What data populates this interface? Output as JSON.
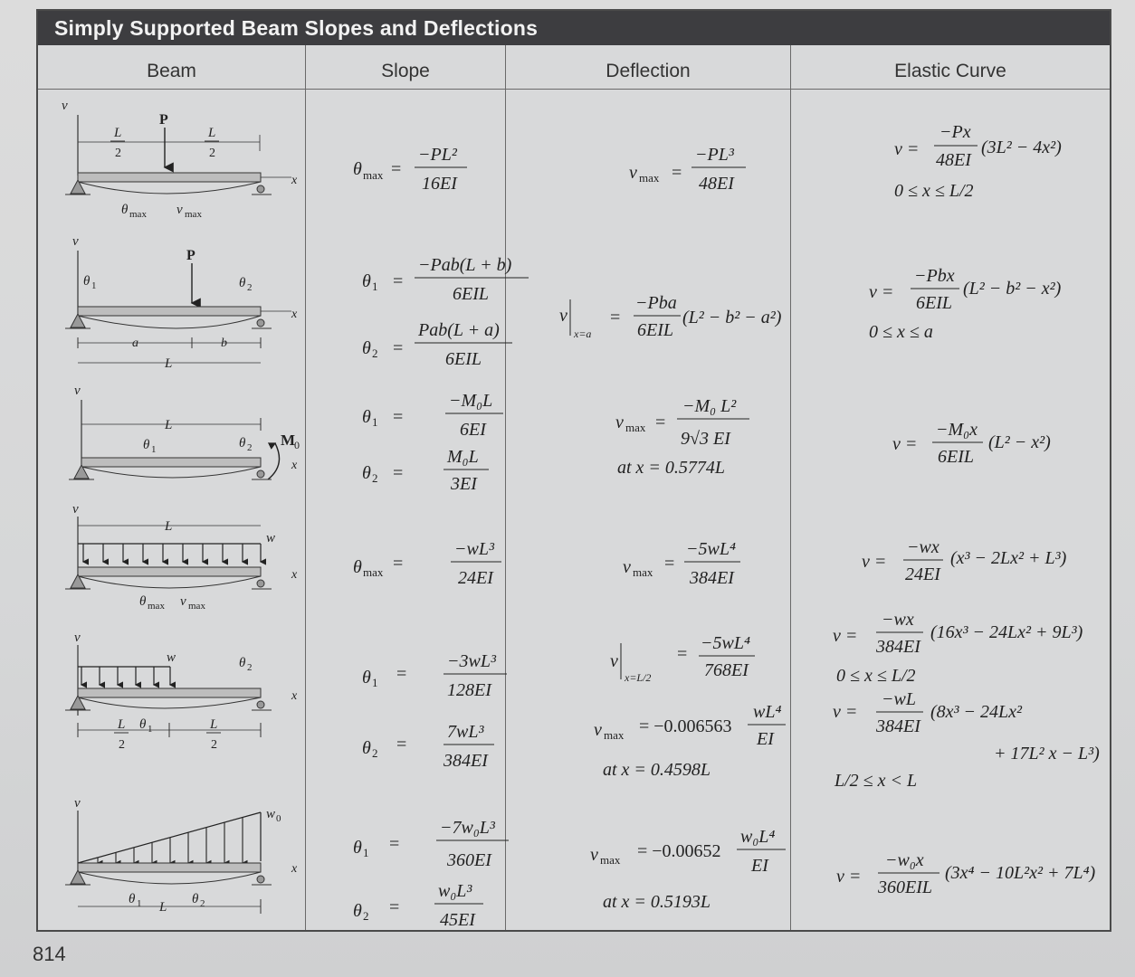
{
  "title": "Simply Supported Beam Slopes and Deflections",
  "columns": [
    "Beam",
    "Slope",
    "Deflection",
    "Elastic Curve"
  ],
  "page_number": "814",
  "rows": [
    {
      "beam": {
        "axis_v": "v",
        "load": "P",
        "dim1": "L",
        "dim1b": "2",
        "dim2": "L",
        "dim2b": "2",
        "x": "x",
        "theta_label": "θ",
        "theta_sub": "max",
        "v_label": "v",
        "v_sub": "max"
      },
      "slope": [
        {
          "sym": "θ",
          "sub": "max",
          "num": "−PL²",
          "den": "16EI"
        }
      ],
      "deflection": {
        "sym": "v",
        "sub": "max",
        "num": "−PL³",
        "den": "48EI"
      },
      "elastic": {
        "lhs": "v =",
        "num": "−Px",
        "den": "48EI",
        "rest": "(3L² − 4x²)",
        "range": "0 ≤ x ≤ L/2"
      }
    },
    {
      "beam": {
        "axis_v": "v",
        "load": "P",
        "t1": "θ",
        "t1s": "1",
        "t2": "θ",
        "t2s": "2",
        "a": "a",
        "b": "b",
        "L": "L",
        "x": "x"
      },
      "slope": [
        {
          "sym": "θ",
          "sub": "1",
          "num": "−Pab(L + b)",
          "den": "6EIL"
        },
        {
          "sym": "θ",
          "sub": "2",
          "num": "Pab(L + a)",
          "den": "6EIL"
        }
      ],
      "deflection": {
        "sym": "v",
        "sub": "x=a",
        "num": "−Pba",
        "den": "6EIL",
        "rest": "(L² − b² − a²)"
      },
      "elastic": {
        "lhs": "v =",
        "num": "−Pbx",
        "den": "6EIL",
        "rest": "(L² − b² − x²)",
        "range": "0 ≤ x ≤ a"
      }
    },
    {
      "beam": {
        "axis_v": "v",
        "L": "L",
        "t1": "θ",
        "t1s": "1",
        "t2": "θ",
        "t2s": "2",
        "M": "M",
        "Ms": "0",
        "x": "x"
      },
      "slope": [
        {
          "sym": "θ",
          "sub": "1",
          "num": "−M₀L",
          "den": "6EI"
        },
        {
          "sym": "θ",
          "sub": "2",
          "num": "M₀L",
          "den": "3EI"
        }
      ],
      "deflection": {
        "sym": "v",
        "sub": "max",
        "num": "−M₀ L²",
        "den": "9√3 EI",
        "at": "at x = 0.5774L"
      },
      "elastic": {
        "lhs": "v =",
        "num": "−M₀x",
        "den": "6EIL",
        "rest": "(L² − x²)"
      }
    },
    {
      "beam": {
        "axis_v": "v",
        "L": "L",
        "w": "w",
        "x": "x",
        "theta_label": "θ",
        "theta_sub": "max",
        "v_label": "v",
        "v_sub": "max"
      },
      "slope": [
        {
          "sym": "θ",
          "sub": "max",
          "num": "−wL³",
          "den": "24EI"
        }
      ],
      "deflection": {
        "sym": "v",
        "sub": "max",
        "num": "−5wL⁴",
        "den": "384EI"
      },
      "elastic": {
        "lhs": "v =",
        "num": "−wx",
        "den": "24EI",
        "rest": "(x³ − 2Lx² + L³)"
      }
    },
    {
      "beam": {
        "axis_v": "v",
        "w": "w",
        "t1": "θ",
        "t1s": "1",
        "t2": "θ",
        "t2s": "2",
        "dim1": "L",
        "dim1b": "2",
        "dim2": "L",
        "dim2b": "2",
        "x": "x"
      },
      "slope": [
        {
          "sym": "θ",
          "sub": "1",
          "num": "−3wL³",
          "den": "128EI"
        },
        {
          "sym": "θ",
          "sub": "2",
          "num": "7wL³",
          "den": "384EI"
        }
      ],
      "deflection": {
        "sym": "v",
        "sub": "x=L/2",
        "num": "−5wL⁴",
        "den": "768EI",
        "max_sym": "v",
        "max_sub": "max",
        "max_val": "= −0.006563",
        "max_num": "wL⁴",
        "max_den": "EI",
        "at": "at x = 0.4598L"
      },
      "elastic": {
        "lhs": "v =",
        "num": "−wx",
        "den": "384EI",
        "rest": "(16x³ − 24Lx² + 9L³)",
        "range": "0 ≤ x ≤ L/2",
        "lhs2": "v =",
        "num2": "−wL",
        "den2": "384EI",
        "rest2": "(8x³ − 24Lx²",
        "rest3": "+ 17L² x − L³)",
        "range2": "L/2 ≤ x < L"
      }
    },
    {
      "beam": {
        "axis_v": "v",
        "w": "w",
        "ws": "0",
        "t1": "θ",
        "t1s": "1",
        "t2": "θ",
        "t2s": "2",
        "L": "L",
        "x": "x"
      },
      "slope": [
        {
          "sym": "θ",
          "sub": "1",
          "num": "−7w₀L³",
          "den": "360EI"
        },
        {
          "sym": "θ",
          "sub": "2",
          "num": "w₀L³",
          "den": "45EI"
        }
      ],
      "deflection": {
        "sym": "v",
        "sub": "max",
        "val": "= −0.00652",
        "num": "w₀L⁴",
        "den": "EI",
        "at": "at x = 0.5193L"
      },
      "elastic": {
        "lhs": "v =",
        "num": "−w₀x",
        "den": "360EIL",
        "rest": "(3x⁴ − 10L²x² + 7L⁴)"
      }
    }
  ]
}
